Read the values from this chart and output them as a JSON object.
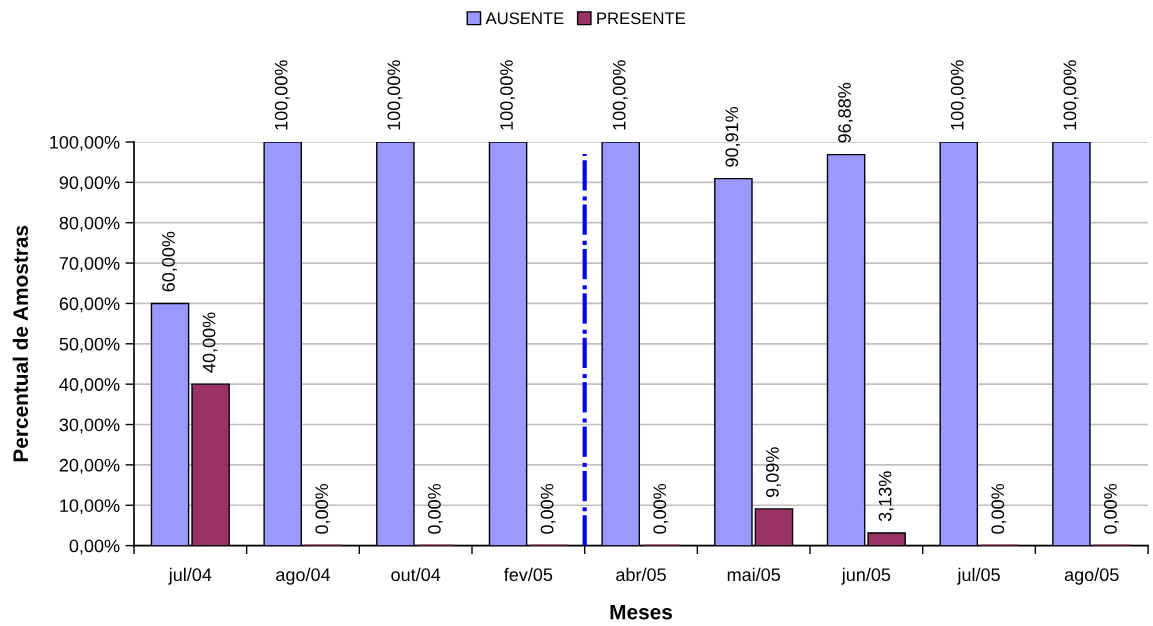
{
  "chart_data": {
    "type": "bar",
    "xlabel": "Meses",
    "ylabel": "Percentual de Amostras",
    "categories": [
      "jul/04",
      "ago/04",
      "out/04",
      "fev/05",
      "abr/05",
      "mai/05",
      "jun/05",
      "jul/05",
      "ago/05"
    ],
    "series": [
      {
        "name": "AUSENTE",
        "color": "#9999ff",
        "values": [
          60,
          100,
          100,
          100,
          100,
          90.91,
          96.88,
          100,
          100
        ],
        "value_labels": [
          "60,00%",
          "100,00%",
          "100,00%",
          "100,00%",
          "100,00%",
          "90,91%",
          "96,88%",
          "100,00%",
          "100,00%"
        ]
      },
      {
        "name": "PRESENTE",
        "color": "#993366",
        "values": [
          40,
          0,
          0,
          0,
          0,
          9.09,
          3.13,
          0,
          0
        ],
        "value_labels": [
          "40,00%",
          "0,00%",
          "0,00%",
          "0,00%",
          "0,00%",
          "9,09%",
          "3,13%",
          "0,00%",
          "0,00%"
        ]
      }
    ],
    "ylim": [
      0,
      100
    ],
    "yticks": [
      {
        "value": 0,
        "label": "0,00%"
      },
      {
        "value": 10,
        "label": "10,00%"
      },
      {
        "value": 20,
        "label": "20,00%"
      },
      {
        "value": 30,
        "label": "30,00%"
      },
      {
        "value": 40,
        "label": "40,00%"
      },
      {
        "value": 50,
        "label": "50,00%"
      },
      {
        "value": 60,
        "label": "60,00%"
      },
      {
        "value": 70,
        "label": "70,00%"
      },
      {
        "value": 80,
        "label": "80,00%"
      },
      {
        "value": 90,
        "label": "90,00%"
      },
      {
        "value": 100,
        "label": "100,00%"
      }
    ],
    "grid": "y",
    "legend": "top"
  }
}
